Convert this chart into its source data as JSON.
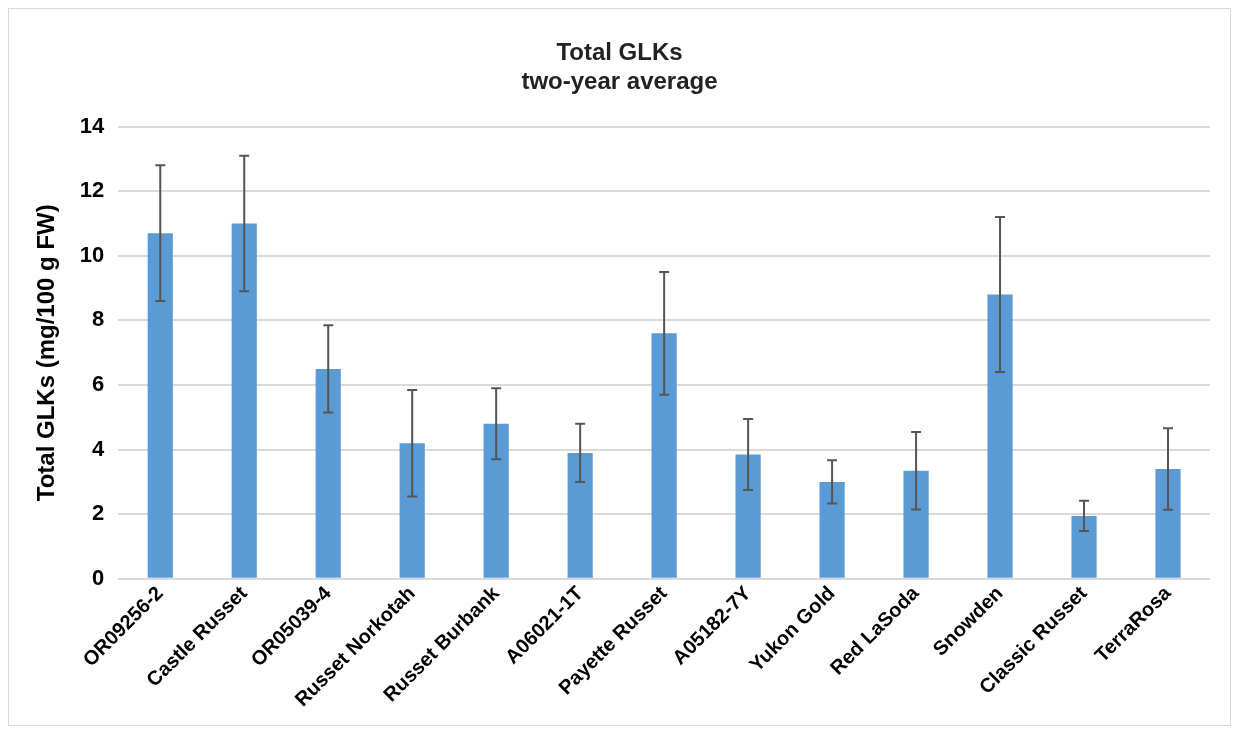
{
  "chart_data": {
    "type": "bar",
    "title": [
      "Total GLKs",
      "two-year average"
    ],
    "ylabel": "Total GLKs (mg/100 g FW)",
    "categories": [
      "OR09256-2",
      "Castle Russet",
      "OR05039-4",
      "Russet Norkotah",
      "Russet Burbank",
      "A06021-1T",
      "Payette Russet",
      "A05182-7Y",
      "Yukon Gold",
      "Red LaSoda",
      "Snowden",
      "Classic Russet",
      "TerraRosa"
    ],
    "values": [
      10.7,
      11.0,
      6.5,
      4.2,
      4.8,
      3.9,
      7.6,
      3.85,
      3.0,
      3.35,
      8.8,
      1.95,
      3.4
    ],
    "errors": [
      2.1,
      2.1,
      1.35,
      1.65,
      1.1,
      0.9,
      1.9,
      1.1,
      0.67,
      1.2,
      2.4,
      0.47,
      1.26
    ],
    "color": "#5b9bd5",
    "ylim": [
      0,
      14
    ],
    "yticks": [
      0,
      2,
      4,
      6,
      8,
      10,
      12,
      14
    ],
    "grid": "y",
    "legend": false
  }
}
